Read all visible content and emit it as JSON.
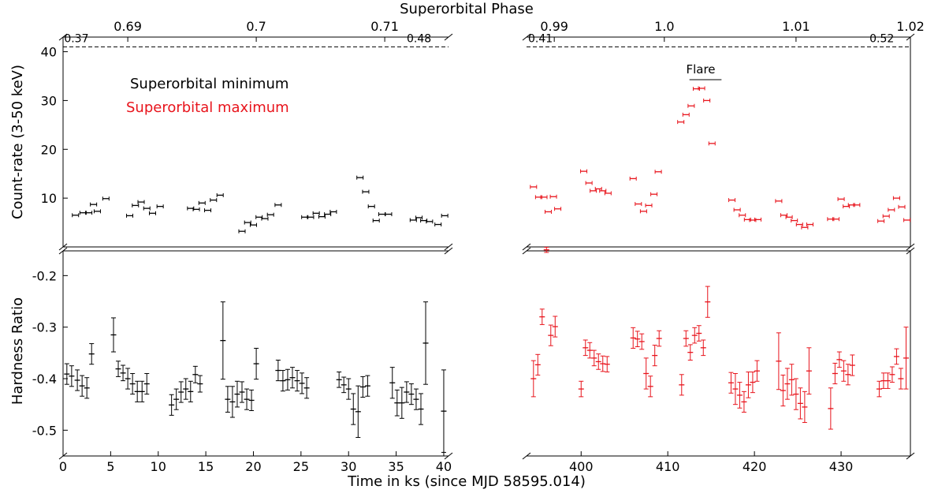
{
  "figure": {
    "top_title": "Superorbital Phase",
    "bottom_xlabel": "Time in ks (since MJD 58595.014)",
    "legend": [
      {
        "label": "Superorbital minimum",
        "color": "#000000"
      },
      {
        "label": "Superorbital maximum",
        "color": "#e8141c"
      }
    ],
    "flare_label": "Flare",
    "colors": {
      "min": "#000000",
      "max": "#e8141c"
    }
  },
  "chart_data": [
    {
      "type": "scatter",
      "panel": "count-rate-left",
      "ylabel": "Count-rate (3-50 keV)",
      "xlim": [
        0,
        40.5
      ],
      "ylim": [
        0,
        43
      ],
      "yticks": [
        10,
        20,
        30,
        40
      ],
      "dashed_line": 41,
      "top_axis": {
        "label": "Superorbital Phase",
        "ticks": [
          {
            "x": 6.8,
            "label": "0.69"
          },
          {
            "x": 20.3,
            "label": "0.7"
          },
          {
            "x": 33.8,
            "label": "0.71"
          }
        ]
      },
      "level_labels": [
        {
          "x": 1.4,
          "label": "0.37"
        },
        {
          "x": 37.4,
          "label": "0.48"
        }
      ],
      "series": [
        {
          "name": "Superorbital minimum",
          "color": "#000000",
          "points": [
            [
              1.3,
              6.5
            ],
            [
              2.1,
              7
            ],
            [
              2.7,
              7
            ],
            [
              3.2,
              8.7
            ],
            [
              3.6,
              7.3
            ],
            [
              4.5,
              9.9
            ],
            [
              7.0,
              6.4
            ],
            [
              7.6,
              8.5
            ],
            [
              8.2,
              9.2
            ],
            [
              8.8,
              7.9
            ],
            [
              9.4,
              6.9
            ],
            [
              10.2,
              8.3
            ],
            [
              13.4,
              7.9
            ],
            [
              14.0,
              7.7
            ],
            [
              14.6,
              9
            ],
            [
              15.2,
              7.5
            ],
            [
              15.8,
              9.6
            ],
            [
              16.5,
              10.6
            ],
            [
              18.8,
              3.2
            ],
            [
              19.4,
              5
            ],
            [
              20.0,
              4.5
            ],
            [
              20.6,
              6.1
            ],
            [
              21.2,
              5.8
            ],
            [
              21.8,
              6.6
            ],
            [
              22.6,
              8.6
            ],
            [
              25.4,
              6.1
            ],
            [
              26.0,
              6.1
            ],
            [
              26.6,
              6.9
            ],
            [
              27.2,
              6.2
            ],
            [
              27.8,
              6.7
            ],
            [
              28.4,
              7.2
            ],
            [
              31.2,
              14.2
            ],
            [
              31.8,
              11.3
            ],
            [
              32.4,
              8.3
            ],
            [
              32.9,
              5.4
            ],
            [
              33.5,
              6.7
            ],
            [
              34.2,
              6.7
            ],
            [
              36.8,
              5.5
            ],
            [
              37.4,
              6
            ],
            [
              37.9,
              5.4
            ],
            [
              38.5,
              5.2
            ],
            [
              39.4,
              4.6
            ],
            [
              40.1,
              6.4
            ]
          ]
        }
      ]
    },
    {
      "type": "scatter",
      "panel": "count-rate-right",
      "xlim": [
        393.7,
        438
      ],
      "ylim": [
        0,
        43
      ],
      "dashed_line": 41,
      "top_axis": {
        "ticks": [
          {
            "x": 396.9,
            "label": "0.99"
          },
          {
            "x": 409.6,
            "label": "1.0"
          },
          {
            "x": 424.8,
            "label": "1.01"
          },
          {
            "x": 438,
            "label": "1.02"
          }
        ]
      },
      "level_labels": [
        {
          "x": 395.3,
          "label": "0.41"
        },
        {
          "x": 434.7,
          "label": "0.52"
        }
      ],
      "flare_span": [
        412.5,
        416.2
      ],
      "series": [
        {
          "name": "Superorbital maximum",
          "color": "#e8141c",
          "points": [
            [
              394.5,
              12.3
            ],
            [
              395.1,
              10.2
            ],
            [
              395.7,
              10.2
            ],
            [
              396.2,
              7.2
            ],
            [
              396.8,
              10.3
            ],
            [
              397.3,
              7.8
            ],
            [
              400.3,
              15.5
            ],
            [
              400.9,
              13.1
            ],
            [
              401.4,
              11.5
            ],
            [
              402.0,
              11.9
            ],
            [
              402.5,
              11.5
            ],
            [
              403.1,
              11
            ],
            [
              406.0,
              14
            ],
            [
              406.6,
              8.8
            ],
            [
              407.2,
              7.3
            ],
            [
              407.8,
              8.5
            ],
            [
              408.4,
              10.8
            ],
            [
              408.9,
              15.4
            ],
            [
              411.5,
              25.6
            ],
            [
              412.1,
              27.1
            ],
            [
              412.7,
              28.9
            ],
            [
              413.3,
              32.4
            ],
            [
              413.9,
              32.5
            ],
            [
              414.5,
              30
            ],
            [
              415.1,
              21.2
            ],
            [
              417.4,
              9.6
            ],
            [
              418.0,
              7.6
            ],
            [
              418.6,
              6.5
            ],
            [
              419.2,
              5.6
            ],
            [
              419.8,
              5.5
            ],
            [
              420.4,
              5.6
            ],
            [
              422.8,
              9.4
            ],
            [
              423.4,
              6.5
            ],
            [
              424.0,
              6.1
            ],
            [
              424.6,
              5.4
            ],
            [
              425.2,
              4.6
            ],
            [
              425.8,
              4
            ],
            [
              426.4,
              4.6
            ],
            [
              428.8,
              5.7
            ],
            [
              429.4,
              5.7
            ],
            [
              430.0,
              9.8
            ],
            [
              430.6,
              8.3
            ],
            [
              431.2,
              8.6
            ],
            [
              431.8,
              8.6
            ],
            [
              434.6,
              5.3
            ],
            [
              435.2,
              6.3
            ],
            [
              435.8,
              7.6
            ],
            [
              436.4,
              10
            ],
            [
              437.0,
              8.2
            ],
            [
              437.6,
              5.5
            ]
          ]
        }
      ]
    },
    {
      "type": "scatter",
      "panel": "hardness-left",
      "ylabel": "Hardness Ratio",
      "xlim": [
        0,
        40.5
      ],
      "ylim": [
        -0.55,
        -0.152
      ],
      "yticks": [
        -0.2,
        -0.3,
        -0.4,
        -0.5
      ],
      "xticks": [
        0,
        5,
        10,
        15,
        20,
        25,
        30,
        35,
        40
      ],
      "xlabel": "Time in ks (since MJD 58595.014)",
      "series": [
        {
          "name": "Superorbital minimum",
          "color": "#000000",
          "points": [
            [
              0.4,
              -0.391,
              0.02
            ],
            [
              0.9,
              -0.395,
              0.02
            ],
            [
              1.5,
              -0.403,
              0.02
            ],
            [
              2.0,
              -0.414,
              0.02
            ],
            [
              2.5,
              -0.418,
              0.02
            ],
            [
              3.0,
              -0.352,
              0.02
            ],
            [
              5.3,
              -0.315,
              0.033
            ],
            [
              5.8,
              -0.381,
              0.015
            ],
            [
              6.3,
              -0.389,
              0.015
            ],
            [
              6.8,
              -0.4,
              0.02
            ],
            [
              7.3,
              -0.41,
              0.02
            ],
            [
              7.8,
              -0.425,
              0.02
            ],
            [
              8.3,
              -0.425,
              0.02
            ],
            [
              8.8,
              -0.41,
              0.02
            ],
            [
              11.4,
              -0.451,
              0.02
            ],
            [
              11.9,
              -0.44,
              0.02
            ],
            [
              12.4,
              -0.426,
              0.02
            ],
            [
              12.9,
              -0.42,
              0.02
            ],
            [
              13.4,
              -0.425,
              0.02
            ],
            [
              13.9,
              -0.392,
              0.016
            ],
            [
              14.4,
              -0.41,
              0.016
            ],
            [
              16.8,
              -0.326,
              0.075
            ],
            [
              17.3,
              -0.44,
              0.025
            ],
            [
              17.8,
              -0.445,
              0.03
            ],
            [
              18.3,
              -0.43,
              0.025
            ],
            [
              18.8,
              -0.426,
              0.02
            ],
            [
              19.3,
              -0.44,
              0.02
            ],
            [
              19.8,
              -0.442,
              0.02
            ],
            [
              20.3,
              -0.371,
              0.03
            ],
            [
              22.6,
              -0.384,
              0.02
            ],
            [
              23.1,
              -0.404,
              0.02
            ],
            [
              23.6,
              -0.402,
              0.02
            ],
            [
              24.1,
              -0.398,
              0.02
            ],
            [
              24.6,
              -0.404,
              0.02
            ],
            [
              25.1,
              -0.409,
              0.02
            ],
            [
              25.6,
              -0.418,
              0.02
            ],
            [
              29.0,
              -0.402,
              0.015
            ],
            [
              29.5,
              -0.412,
              0.015
            ],
            [
              30.0,
              -0.42,
              0.02
            ],
            [
              30.5,
              -0.459,
              0.03
            ],
            [
              31.0,
              -0.464,
              0.05
            ],
            [
              31.5,
              -0.416,
              0.02
            ],
            [
              32.0,
              -0.414,
              0.02
            ],
            [
              34.6,
              -0.408,
              0.03
            ],
            [
              35.1,
              -0.447,
              0.025
            ],
            [
              35.6,
              -0.447,
              0.03
            ],
            [
              36.1,
              -0.426,
              0.02
            ],
            [
              36.6,
              -0.43,
              0.02
            ],
            [
              37.1,
              -0.44,
              0.02
            ],
            [
              37.6,
              -0.459,
              0.03
            ],
            [
              38.1,
              -0.331,
              0.08
            ],
            [
              40.0,
              -0.463,
              0.08
            ]
          ]
        }
      ]
    },
    {
      "type": "scatter",
      "panel": "hardness-right",
      "xlim": [
        393.7,
        438
      ],
      "ylim": [
        -0.55,
        -0.152
      ],
      "xticks": [
        400,
        410,
        420,
        430
      ],
      "series": [
        {
          "name": "Superorbital maximum",
          "color": "#e8141c",
          "points": [
            [
              394.5,
              -0.4,
              0.035
            ],
            [
              395.0,
              -0.373,
              0.02
            ],
            [
              395.5,
              -0.28,
              0.015
            ],
            [
              396.0,
              -0.15,
              0.005
            ],
            [
              396.5,
              -0.316,
              0.02
            ],
            [
              397.0,
              -0.299,
              0.02
            ],
            [
              400.0,
              -0.42,
              0.015
            ],
            [
              400.5,
              -0.34,
              0.015
            ],
            [
              401.0,
              -0.345,
              0.015
            ],
            [
              401.5,
              -0.36,
              0.015
            ],
            [
              402.0,
              -0.367,
              0.015
            ],
            [
              402.5,
              -0.371,
              0.015
            ],
            [
              403.0,
              -0.372,
              0.015
            ],
            [
              406.0,
              -0.321,
              0.02
            ],
            [
              406.5,
              -0.323,
              0.015
            ],
            [
              407.0,
              -0.328,
              0.015
            ],
            [
              407.5,
              -0.39,
              0.03
            ],
            [
              408.0,
              -0.415,
              0.02
            ],
            [
              408.5,
              -0.355,
              0.02
            ],
            [
              409.0,
              -0.322,
              0.015
            ],
            [
              411.6,
              -0.412,
              0.02
            ],
            [
              412.1,
              -0.322,
              0.015
            ],
            [
              412.6,
              -0.349,
              0.015
            ],
            [
              413.1,
              -0.316,
              0.015
            ],
            [
              413.6,
              -0.312,
              0.015
            ],
            [
              414.1,
              -0.34,
              0.015
            ],
            [
              414.6,
              -0.251,
              0.03
            ],
            [
              417.3,
              -0.408,
              0.02
            ],
            [
              417.8,
              -0.42,
              0.03
            ],
            [
              418.3,
              -0.432,
              0.025
            ],
            [
              418.8,
              -0.445,
              0.02
            ],
            [
              419.3,
              -0.412,
              0.025
            ],
            [
              419.8,
              -0.407,
              0.02
            ],
            [
              420.3,
              -0.385,
              0.02
            ],
            [
              422.8,
              -0.366,
              0.055
            ],
            [
              423.3,
              -0.423,
              0.03
            ],
            [
              423.8,
              -0.41,
              0.03
            ],
            [
              424.3,
              -0.402,
              0.03
            ],
            [
              424.8,
              -0.43,
              0.03
            ],
            [
              425.3,
              -0.448,
              0.03
            ],
            [
              425.8,
              -0.455,
              0.03
            ],
            [
              426.3,
              -0.385,
              0.045
            ],
            [
              428.8,
              -0.458,
              0.04
            ],
            [
              429.3,
              -0.39,
              0.02
            ],
            [
              429.8,
              -0.363,
              0.015
            ],
            [
              430.3,
              -0.385,
              0.02
            ],
            [
              430.8,
              -0.392,
              0.02
            ],
            [
              431.3,
              -0.374,
              0.02
            ],
            [
              434.4,
              -0.42,
              0.015
            ],
            [
              434.9,
              -0.404,
              0.015
            ],
            [
              435.4,
              -0.404,
              0.015
            ],
            [
              435.9,
              -0.392,
              0.015
            ],
            [
              436.4,
              -0.357,
              0.015
            ],
            [
              436.9,
              -0.4,
              0.02
            ],
            [
              437.5,
              -0.36,
              0.06
            ]
          ]
        }
      ]
    }
  ]
}
